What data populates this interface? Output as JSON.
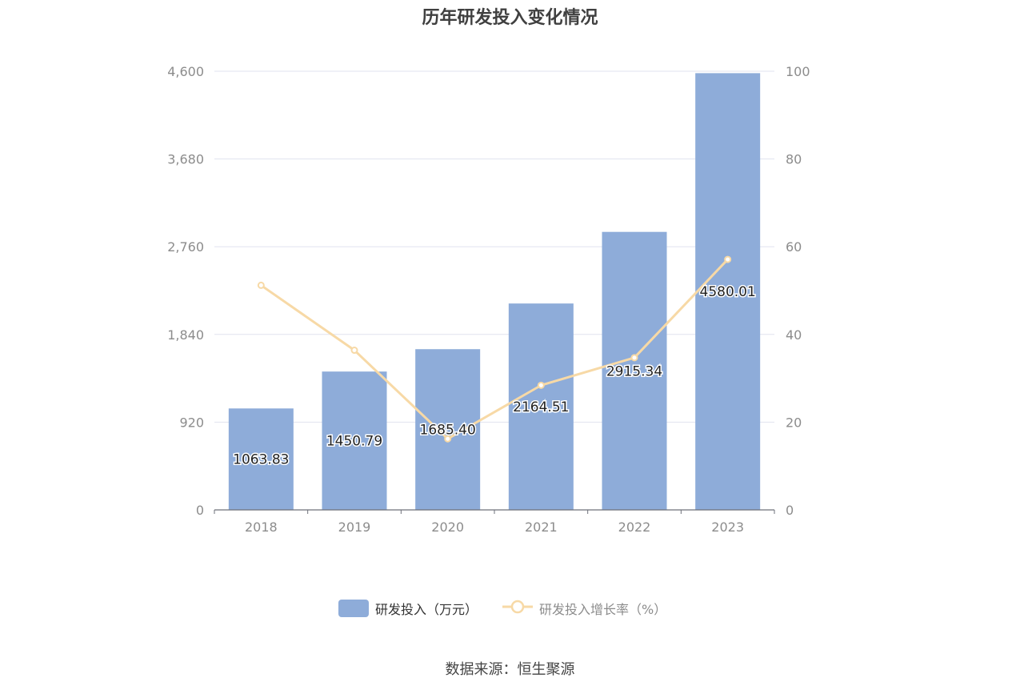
{
  "chart_data": {
    "type": "bar",
    "title": "历年研发投入变化情况",
    "categories": [
      "2018",
      "2019",
      "2020",
      "2021",
      "2022",
      "2023"
    ],
    "series": [
      {
        "name": "研发投入（万元）",
        "type": "bar",
        "axis": "left",
        "values": [
          1063.83,
          1450.79,
          1685.4,
          2164.51,
          2915.34,
          4580.01
        ],
        "labels": [
          "1063.83",
          "1450.79",
          "1685.40",
          "2164.51",
          "2915.34",
          "4580.01"
        ],
        "color": "#8eacd9"
      },
      {
        "name": "研发投入增长率（%）",
        "type": "line",
        "axis": "right",
        "values": [
          51.2,
          36.4,
          16.2,
          28.4,
          34.7,
          57.1
        ],
        "color": "#f7d9a6"
      }
    ],
    "y_left": {
      "ticks": [
        "0",
        "920",
        "1,840",
        "2,760",
        "3,680",
        "4,600"
      ],
      "ylim": [
        0,
        4600
      ]
    },
    "y_right": {
      "ticks": [
        "0",
        "20",
        "40",
        "60",
        "80",
        "100"
      ],
      "ylim": [
        0,
        100
      ]
    },
    "grid": true,
    "legend_position": "bottom"
  },
  "source": "数据来源：恒生聚源",
  "colors": {
    "bar": "#8eacd9",
    "line": "#f7d9a6",
    "grid": "#e0e3ef",
    "axis": "#6e7079",
    "tick_text": "#8c8c8c"
  }
}
